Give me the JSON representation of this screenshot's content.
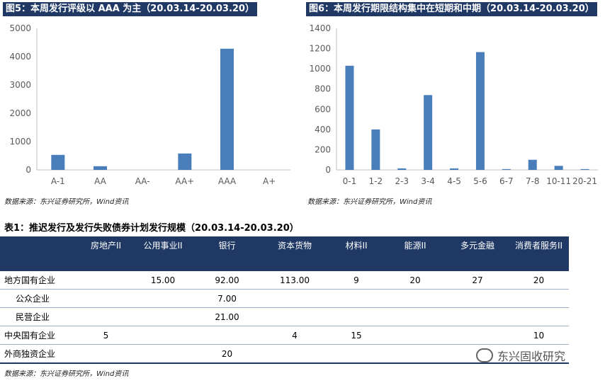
{
  "figure5": {
    "title": "图5：本周发行评级以 AAA 为主（20.03.14-20.03.20）",
    "source": "数据来源：东兴证券研究所，Wind资讯"
  },
  "figure6": {
    "title": "图6：本周发行期限结构集中在短期和中期（20.03.14-20.03.20）",
    "source": "数据来源：东兴证券研究所，Wind资讯"
  },
  "chart_data": [
    {
      "type": "bar",
      "categories": [
        "A-1",
        "AA",
        "AA-",
        "AA+",
        "AAA",
        "A+"
      ],
      "values": [
        530,
        130,
        0,
        580,
        4280,
        0
      ],
      "ylim": [
        0,
        5000
      ],
      "yticks": [
        0,
        1000,
        2000,
        3000,
        4000,
        5000
      ],
      "bar_color": "#4a7ebb",
      "grid": false
    },
    {
      "type": "bar",
      "categories": [
        "0-1",
        "1-2",
        "2-3",
        "3-4",
        "4-5",
        "5-6",
        "6-7",
        "7-8",
        "10-11",
        "20-21"
      ],
      "values": [
        1030,
        400,
        15,
        740,
        15,
        1165,
        8,
        100,
        40,
        8
      ],
      "ylim": [
        0,
        1400
      ],
      "yticks": [
        0,
        200,
        400,
        600,
        800,
        1000,
        1200,
        1400
      ],
      "bar_color": "#4a7ebb",
      "grid": false
    }
  ],
  "table": {
    "title": "表1：推迟发行及发行失败债券计划发行规模（20.03.14-20.03.20）",
    "headers": [
      "",
      "房地产II",
      "公用事业II",
      "银行",
      "资本货物",
      "材料II",
      "能源II",
      "多元金融",
      "消费者服务II"
    ],
    "rows": [
      {
        "label": "地方国有企业",
        "indent": false,
        "cells": [
          "",
          "15.00",
          "92.00",
          "113.00",
          "9",
          "20",
          "27",
          "20"
        ]
      },
      {
        "label": "公众企业",
        "indent": true,
        "cells": [
          "",
          "",
          "7.00",
          "",
          "",
          "",
          "",
          ""
        ]
      },
      {
        "label": "民营企业",
        "indent": true,
        "cells": [
          "",
          "",
          "21.00",
          "",
          "",
          "",
          "",
          ""
        ]
      },
      {
        "label": "中央国有企业",
        "indent": false,
        "cells": [
          "5",
          "",
          "",
          "4",
          "15",
          "",
          "",
          "10"
        ]
      },
      {
        "label": "外商独资企业",
        "indent": false,
        "cells": [
          "",
          "",
          "20",
          "",
          "",
          "",
          "",
          ""
        ]
      }
    ],
    "source": "数据来源：东兴证券研究所，Wind资讯"
  },
  "watermark": {
    "text": "东兴固收研究",
    "icon": "wechat-icon"
  }
}
